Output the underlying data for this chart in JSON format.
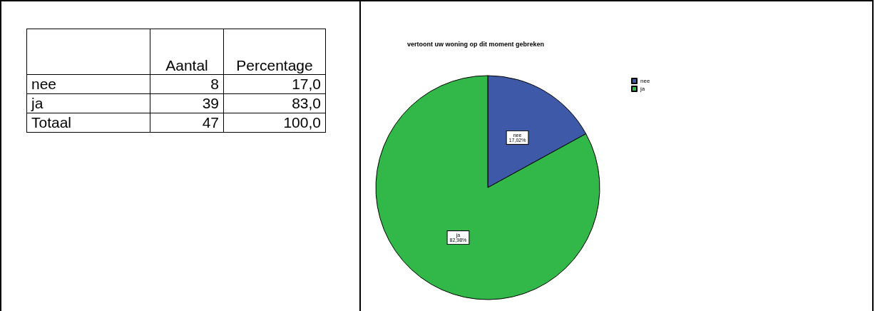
{
  "chart_data": [
    {
      "type": "other",
      "data_labels": true,
      "categories": [
        "nee",
        "ja",
        "Totaal"
      ],
      "series": [
        {
          "name": "Aantal",
          "values": [
            8,
            39,
            47
          ]
        },
        {
          "name": "Percentage",
          "values": [
            17.0,
            83.0,
            100.0
          ],
          "value_labels": [
            "17,0",
            "83,0",
            "100,0"
          ]
        }
      ]
    },
    {
      "type": "pie",
      "title": "vertoont uw woning op dit moment gebreken",
      "categories": [
        "nee",
        "ja"
      ],
      "values": [
        17.02,
        82.98
      ],
      "colors": [
        "#3d59a8",
        "#31b849"
      ],
      "value_labels": [
        "17,02%",
        "82,98%"
      ],
      "legend": "top right"
    }
  ]
}
